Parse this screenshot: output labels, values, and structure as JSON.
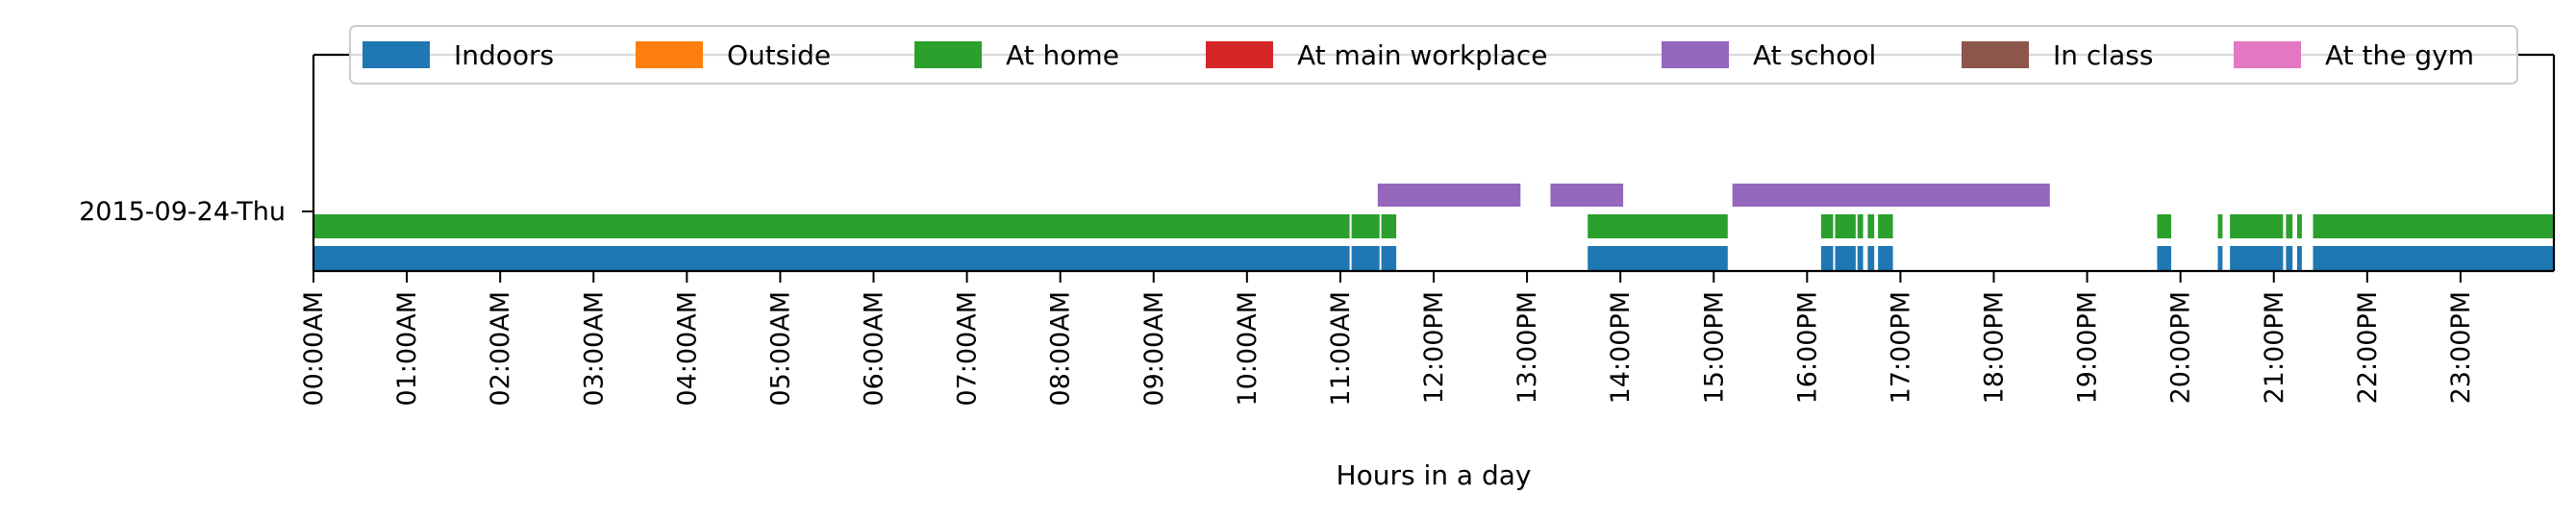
{
  "chart_data": {
    "type": "timeline",
    "title": "",
    "xlabel": "Hours in a day",
    "ylabel": "",
    "xlim": [
      0,
      24
    ],
    "row_label": "2015-09-24-Thu",
    "x_ticks": [
      {
        "hour": 0,
        "label": "00:00AM"
      },
      {
        "hour": 1,
        "label": "01:00AM"
      },
      {
        "hour": 2,
        "label": "02:00AM"
      },
      {
        "hour": 3,
        "label": "03:00AM"
      },
      {
        "hour": 4,
        "label": "04:00AM"
      },
      {
        "hour": 5,
        "label": "05:00AM"
      },
      {
        "hour": 6,
        "label": "06:00AM"
      },
      {
        "hour": 7,
        "label": "07:00AM"
      },
      {
        "hour": 8,
        "label": "08:00AM"
      },
      {
        "hour": 9,
        "label": "09:00AM"
      },
      {
        "hour": 10,
        "label": "10:00AM"
      },
      {
        "hour": 11,
        "label": "11:00AM"
      },
      {
        "hour": 12,
        "label": "12:00PM"
      },
      {
        "hour": 13,
        "label": "13:00PM"
      },
      {
        "hour": 14,
        "label": "14:00PM"
      },
      {
        "hour": 15,
        "label": "15:00PM"
      },
      {
        "hour": 16,
        "label": "16:00PM"
      },
      {
        "hour": 17,
        "label": "17:00PM"
      },
      {
        "hour": 18,
        "label": "18:00PM"
      },
      {
        "hour": 19,
        "label": "19:00PM"
      },
      {
        "hour": 20,
        "label": "20:00PM"
      },
      {
        "hour": 21,
        "label": "21:00PM"
      },
      {
        "hour": 22,
        "label": "22:00PM"
      },
      {
        "hour": 23,
        "label": "23:00PM"
      }
    ],
    "legend_position": "top",
    "series": [
      {
        "name": "Indoors",
        "color": "#1f77b4",
        "segments": [
          [
            0,
            11.1
          ],
          [
            11.12,
            11.42
          ],
          [
            11.44,
            11.6
          ],
          [
            13.65,
            15.15
          ],
          [
            16.15,
            16.28
          ],
          [
            16.3,
            16.52
          ],
          [
            16.54,
            16.6
          ],
          [
            16.65,
            16.72
          ],
          [
            16.76,
            16.92
          ],
          [
            19.75,
            19.9
          ],
          [
            20.4,
            20.45
          ],
          [
            20.53,
            21.1
          ],
          [
            21.13,
            21.2
          ],
          [
            21.25,
            21.3
          ],
          [
            21.42,
            24
          ]
        ]
      },
      {
        "name": "Outside",
        "color": "#ff7f0e",
        "segments": []
      },
      {
        "name": "At home",
        "color": "#2ca02c",
        "segments": [
          [
            0,
            11.1
          ],
          [
            11.12,
            11.42
          ],
          [
            11.44,
            11.6
          ],
          [
            13.65,
            15.15
          ],
          [
            16.15,
            16.28
          ],
          [
            16.3,
            16.52
          ],
          [
            16.54,
            16.6
          ],
          [
            16.65,
            16.72
          ],
          [
            16.76,
            16.92
          ],
          [
            19.75,
            19.9
          ],
          [
            20.4,
            20.45
          ],
          [
            20.53,
            21.1
          ],
          [
            21.13,
            21.2
          ],
          [
            21.25,
            21.3
          ],
          [
            21.42,
            24
          ]
        ]
      },
      {
        "name": "At main workplace",
        "color": "#d62728",
        "segments": []
      },
      {
        "name": "At school",
        "color": "#9467bd",
        "segments": [
          [
            11.4,
            12.93
          ],
          [
            13.25,
            14.03
          ],
          [
            15.2,
            18.6
          ]
        ]
      },
      {
        "name": "In class",
        "color": "#8c564b",
        "segments": []
      },
      {
        "name": "At the gym",
        "color": "#e377c2",
        "segments": []
      }
    ]
  }
}
